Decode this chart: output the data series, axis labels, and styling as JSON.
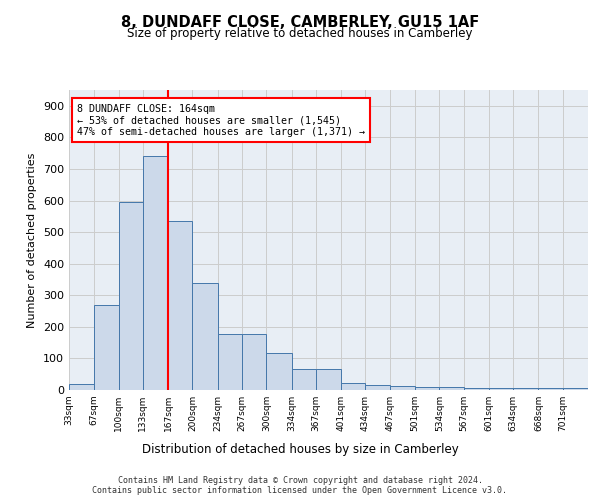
{
  "title1": "8, DUNDAFF CLOSE, CAMBERLEY, GU15 1AF",
  "title2": "Size of property relative to detached houses in Camberley",
  "xlabel": "Distribution of detached houses by size in Camberley",
  "ylabel": "Number of detached properties",
  "bar_values": [
    20,
    270,
    595,
    740,
    535,
    340,
    178,
    178,
    118,
    65,
    65,
    22,
    15,
    12,
    8,
    8,
    5,
    5,
    5,
    5,
    5
  ],
  "bin_labels": [
    "33sqm",
    "67sqm",
    "100sqm",
    "133sqm",
    "167sqm",
    "200sqm",
    "234sqm",
    "267sqm",
    "300sqm",
    "334sqm",
    "367sqm",
    "401sqm",
    "434sqm",
    "467sqm",
    "501sqm",
    "534sqm",
    "567sqm",
    "601sqm",
    "634sqm",
    "668sqm",
    "701sqm"
  ],
  "bar_color": "#ccd9ea",
  "bar_edge_color": "#4477aa",
  "vline_color": "red",
  "annotation_text": "8 DUNDAFF CLOSE: 164sqm\n← 53% of detached houses are smaller (1,545)\n47% of semi-detached houses are larger (1,371) →",
  "ylim": [
    0,
    950
  ],
  "yticks": [
    0,
    100,
    200,
    300,
    400,
    500,
    600,
    700,
    800,
    900
  ],
  "grid_color": "#cccccc",
  "bg_color": "#e8eef5",
  "footer_text": "Contains HM Land Registry data © Crown copyright and database right 2024.\nContains public sector information licensed under the Open Government Licence v3.0.",
  "bin_edges": [
    33,
    67,
    100,
    133,
    167,
    200,
    234,
    267,
    300,
    334,
    367,
    401,
    434,
    467,
    501,
    534,
    567,
    601,
    634,
    668,
    701,
    735
  ]
}
